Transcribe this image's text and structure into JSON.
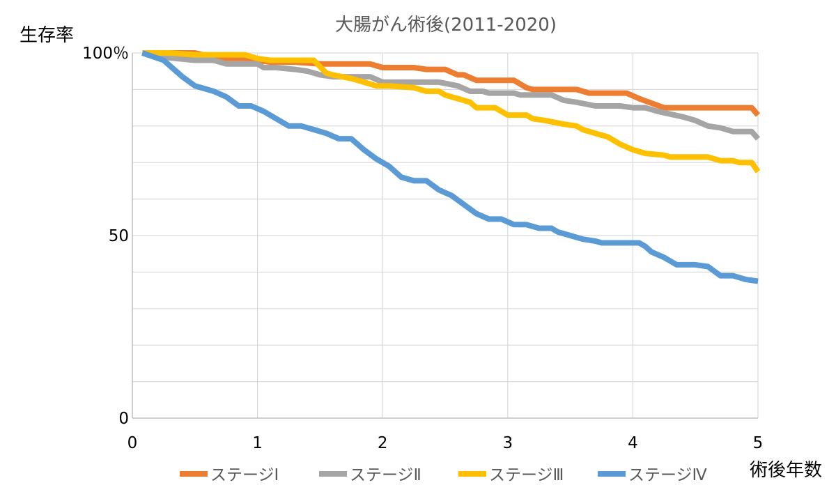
{
  "chart_data": {
    "type": "line",
    "title": "大腸がん術後(2011-2020)",
    "ylabel": "生存率",
    "xlabel": "術後年数",
    "xlim": [
      0,
      5
    ],
    "ylim": [
      0,
      100
    ],
    "x_ticks": [
      "0",
      "1",
      "2",
      "3",
      "4",
      "5"
    ],
    "y_ticks": [
      "0",
      "50",
      "100％"
    ],
    "grid": "horizontal and vertical",
    "legend_position": "bottom",
    "series": [
      {
        "name": "ステージⅠ",
        "color": "#ED7D31",
        "points": [
          [
            0.08,
            100
          ],
          [
            0.5,
            100
          ],
          [
            0.7,
            98.5
          ],
          [
            0.9,
            98.5
          ],
          [
            1.0,
            98
          ],
          [
            1.1,
            97.5
          ],
          [
            1.3,
            97.5
          ],
          [
            1.5,
            97
          ],
          [
            1.9,
            97
          ],
          [
            2.0,
            96
          ],
          [
            2.25,
            96
          ],
          [
            2.35,
            95.5
          ],
          [
            2.5,
            95.5
          ],
          [
            2.6,
            94
          ],
          [
            2.65,
            94
          ],
          [
            2.75,
            92.5
          ],
          [
            3.05,
            92.5
          ],
          [
            3.15,
            90.5
          ],
          [
            3.2,
            90
          ],
          [
            3.55,
            90
          ],
          [
            3.65,
            89
          ],
          [
            3.95,
            89
          ],
          [
            4.05,
            87.5
          ],
          [
            4.25,
            85
          ],
          [
            4.95,
            85
          ],
          [
            5.0,
            83
          ]
        ]
      },
      {
        "name": "ステージⅡ",
        "color": "#A5A5A5",
        "points": [
          [
            0.08,
            100
          ],
          [
            0.2,
            99
          ],
          [
            0.35,
            98.5
          ],
          [
            0.5,
            98
          ],
          [
            0.65,
            98
          ],
          [
            0.75,
            97
          ],
          [
            1.0,
            97
          ],
          [
            1.05,
            96
          ],
          [
            1.15,
            96
          ],
          [
            1.3,
            95.5
          ],
          [
            1.4,
            95
          ],
          [
            1.5,
            94
          ],
          [
            1.6,
            93.5
          ],
          [
            1.9,
            93.5
          ],
          [
            2.0,
            92
          ],
          [
            2.45,
            92
          ],
          [
            2.6,
            91
          ],
          [
            2.7,
            89.5
          ],
          [
            2.8,
            89.5
          ],
          [
            2.85,
            89
          ],
          [
            3.05,
            89
          ],
          [
            3.1,
            88.5
          ],
          [
            3.35,
            88.5
          ],
          [
            3.45,
            87
          ],
          [
            3.55,
            86.5
          ],
          [
            3.7,
            85.5
          ],
          [
            3.9,
            85.5
          ],
          [
            4.0,
            85
          ],
          [
            4.1,
            85
          ],
          [
            4.2,
            84
          ],
          [
            4.4,
            82.5
          ],
          [
            4.5,
            81.5
          ],
          [
            4.6,
            80
          ],
          [
            4.7,
            79.5
          ],
          [
            4.8,
            78.5
          ],
          [
            4.95,
            78.5
          ],
          [
            5.0,
            76.5
          ]
        ]
      },
      {
        "name": "ステージⅢ",
        "color": "#FFC000",
        "points": [
          [
            0.08,
            100
          ],
          [
            0.3,
            100
          ],
          [
            0.5,
            99.5
          ],
          [
            0.9,
            99.5
          ],
          [
            1.0,
            98.5
          ],
          [
            1.1,
            98
          ],
          [
            1.45,
            98
          ],
          [
            1.55,
            94.5
          ],
          [
            1.6,
            94
          ],
          [
            1.75,
            93
          ],
          [
            1.85,
            92
          ],
          [
            1.95,
            91
          ],
          [
            2.05,
            91
          ],
          [
            2.25,
            90.5
          ],
          [
            2.35,
            89.5
          ],
          [
            2.45,
            89.5
          ],
          [
            2.5,
            88.5
          ],
          [
            2.6,
            87.5
          ],
          [
            2.7,
            86.5
          ],
          [
            2.75,
            85
          ],
          [
            2.9,
            85
          ],
          [
            2.95,
            84
          ],
          [
            3.0,
            83
          ],
          [
            3.15,
            83
          ],
          [
            3.2,
            82
          ],
          [
            3.3,
            81.5
          ],
          [
            3.45,
            80.5
          ],
          [
            3.55,
            80
          ],
          [
            3.6,
            79
          ],
          [
            3.7,
            78
          ],
          [
            3.8,
            77
          ],
          [
            3.9,
            75
          ],
          [
            4.0,
            73.5
          ],
          [
            4.1,
            72.5
          ],
          [
            4.25,
            72
          ],
          [
            4.3,
            71.5
          ],
          [
            4.6,
            71.5
          ],
          [
            4.7,
            70.5
          ],
          [
            4.8,
            70.5
          ],
          [
            4.85,
            70
          ],
          [
            4.95,
            70
          ],
          [
            5.0,
            67.5
          ]
        ]
      },
      {
        "name": "ステージⅣ",
        "color": "#5B9BD5",
        "points": [
          [
            0.08,
            100
          ],
          [
            0.25,
            98
          ],
          [
            0.4,
            93.5
          ],
          [
            0.5,
            91
          ],
          [
            0.65,
            89.5
          ],
          [
            0.75,
            88
          ],
          [
            0.85,
            85.5
          ],
          [
            0.95,
            85.5
          ],
          [
            1.05,
            84
          ],
          [
            1.15,
            82
          ],
          [
            1.25,
            80
          ],
          [
            1.35,
            80
          ],
          [
            1.45,
            79
          ],
          [
            1.55,
            78
          ],
          [
            1.65,
            76.5
          ],
          [
            1.75,
            76.5
          ],
          [
            1.85,
            73.5
          ],
          [
            1.95,
            71
          ],
          [
            2.05,
            69
          ],
          [
            2.15,
            66
          ],
          [
            2.25,
            65
          ],
          [
            2.35,
            65
          ],
          [
            2.45,
            62.5
          ],
          [
            2.55,
            61
          ],
          [
            2.65,
            58.5
          ],
          [
            2.75,
            56
          ],
          [
            2.85,
            54.5
          ],
          [
            2.95,
            54.5
          ],
          [
            3.05,
            53
          ],
          [
            3.15,
            53
          ],
          [
            3.25,
            52
          ],
          [
            3.35,
            52
          ],
          [
            3.4,
            51
          ],
          [
            3.5,
            50
          ],
          [
            3.6,
            49
          ],
          [
            3.7,
            48.5
          ],
          [
            3.75,
            48
          ],
          [
            4.05,
            48
          ],
          [
            4.1,
            47
          ],
          [
            4.15,
            45.5
          ],
          [
            4.25,
            44
          ],
          [
            4.35,
            42
          ],
          [
            4.5,
            42
          ],
          [
            4.6,
            41.5
          ],
          [
            4.7,
            39
          ],
          [
            4.8,
            39
          ],
          [
            4.9,
            38
          ],
          [
            5.0,
            37.5
          ]
        ]
      }
    ]
  }
}
